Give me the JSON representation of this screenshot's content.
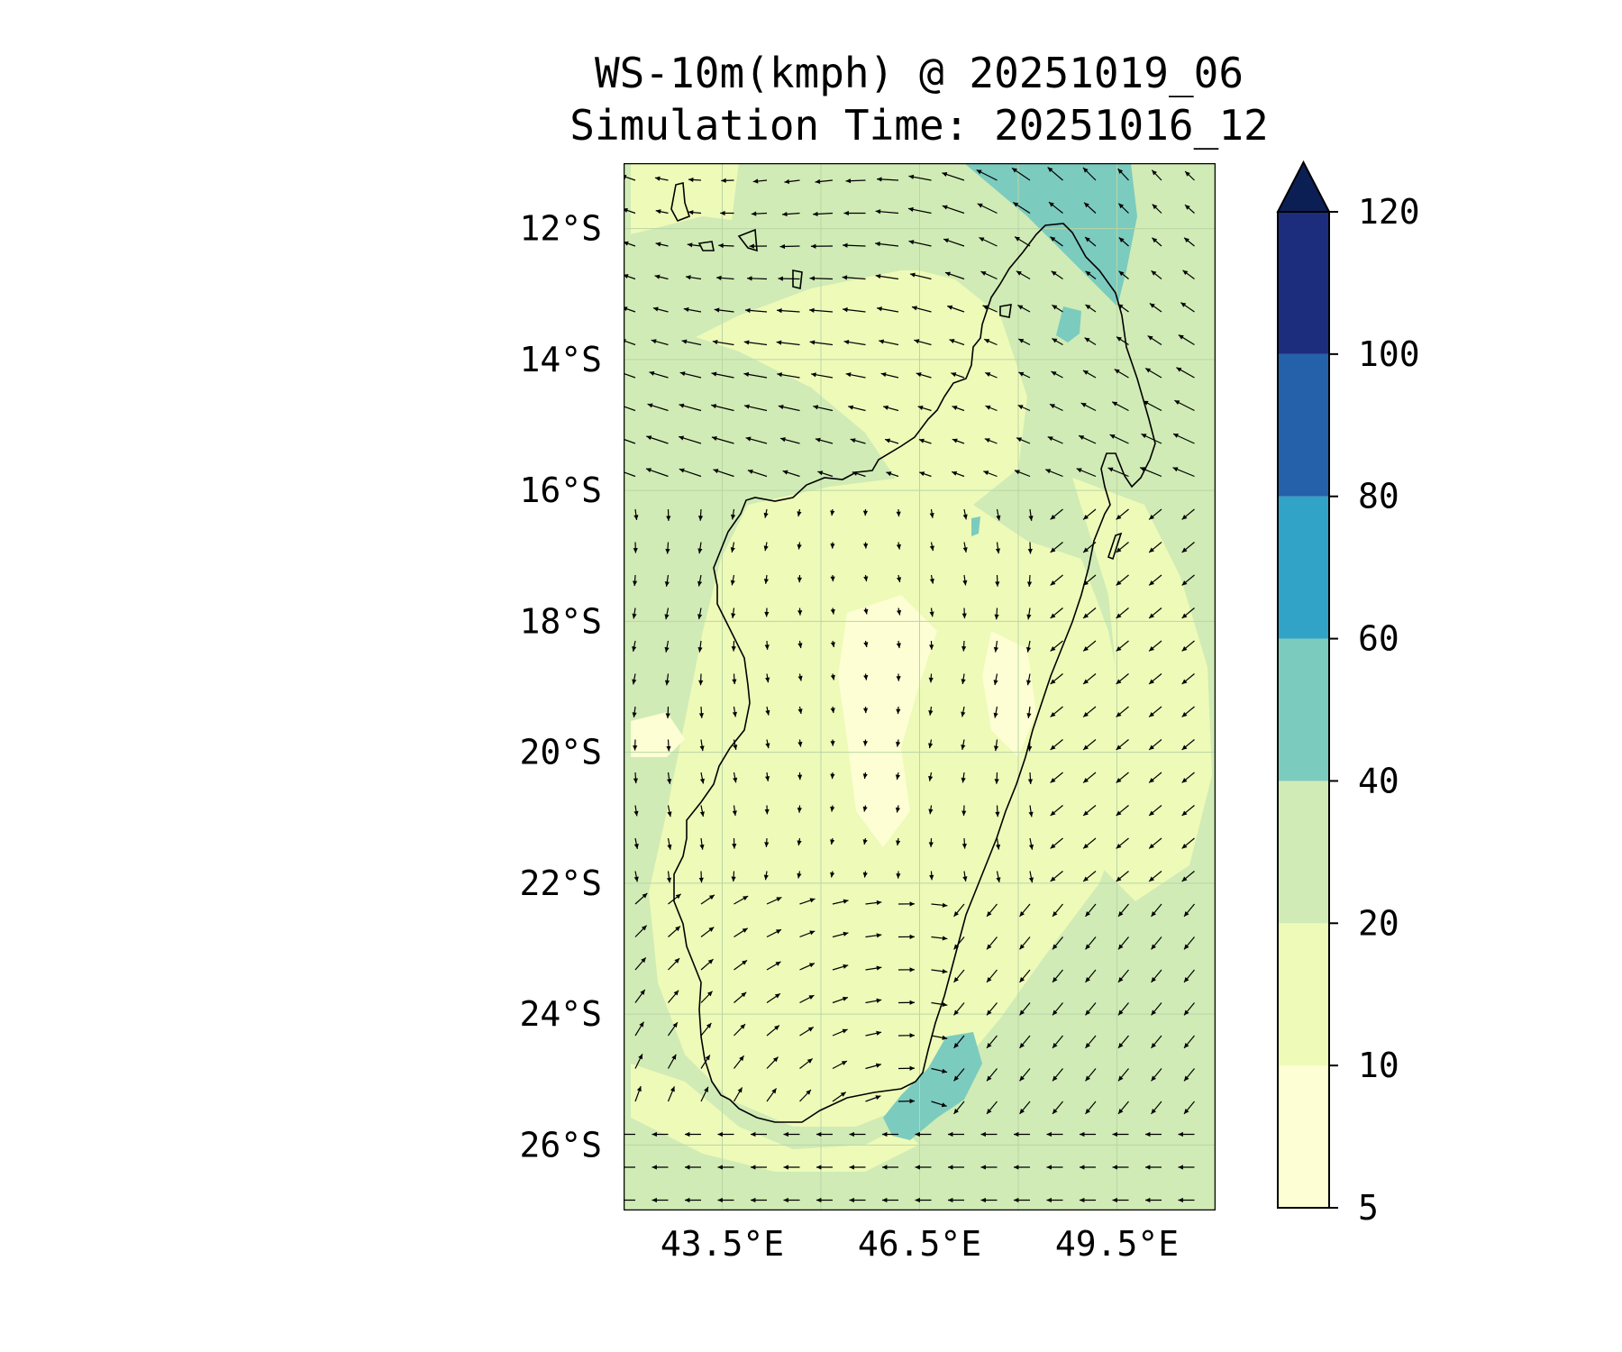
{
  "title": {
    "line1": "WS-10m(kmph) @ 20251019_06",
    "line2": "Simulation Time: 20251016_12"
  },
  "map": {
    "lat_range": [
      -27,
      -11
    ],
    "lon_range": [
      42.0,
      51.0
    ],
    "lat_ticks": [
      {
        "value": -12,
        "label": "12°S"
      },
      {
        "value": -14,
        "label": "14°S"
      },
      {
        "value": -16,
        "label": "16°S"
      },
      {
        "value": -18,
        "label": "18°S"
      },
      {
        "value": -20,
        "label": "20°S"
      },
      {
        "value": -22,
        "label": "22°S"
      },
      {
        "value": -24,
        "label": "24°S"
      },
      {
        "value": -26,
        "label": "26°S"
      }
    ],
    "lon_ticks": [
      {
        "value": 43.5,
        "label": "43.5°E"
      },
      {
        "value": 46.5,
        "label": "46.5°E"
      },
      {
        "value": 49.5,
        "label": "49.5°E"
      }
    ],
    "background_color": "#d0ebb5",
    "coastline_color": "#000000"
  },
  "colorbar": {
    "levels": [
      {
        "value": 5,
        "label": "5"
      },
      {
        "value": 10,
        "label": "10"
      },
      {
        "value": 20,
        "label": "20"
      },
      {
        "value": 40,
        "label": "40"
      },
      {
        "value": 60,
        "label": "60"
      },
      {
        "value": 80,
        "label": "80"
      },
      {
        "value": 100,
        "label": "100"
      },
      {
        "value": 120,
        "label": "120"
      }
    ],
    "colors": [
      "#fdfed3",
      "#eefab8",
      "#d0ebb5",
      "#7ccbbf",
      "#30a3c6",
      "#2461aa",
      "#1c2d7e"
    ],
    "extend_color": "#0c1f55"
  }
}
